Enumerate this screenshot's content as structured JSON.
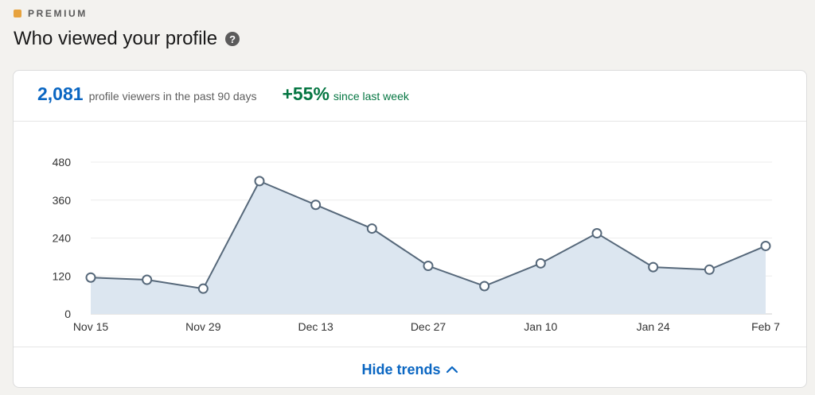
{
  "header": {
    "premium_label": "PREMIUM",
    "title": "Who viewed your profile",
    "help_icon": "question-circle-icon"
  },
  "stats": {
    "viewer_count": "2,081",
    "viewer_desc": "profile viewers in the past 90 days",
    "growth_value": "+55%",
    "growth_desc": "since last week"
  },
  "footer": {
    "toggle_label": "Hide trends",
    "toggle_icon": "chevron-up-icon"
  },
  "colors": {
    "accent": "#0a66c2",
    "positive": "#057642",
    "line": "#56687a",
    "area": "#dce6f0",
    "premium": "#e7a33e"
  },
  "chart_data": {
    "type": "area",
    "x": [
      "Nov 15",
      "Nov 22",
      "Nov 29",
      "Dec 6",
      "Dec 13",
      "Dec 20",
      "Dec 27",
      "Jan 3",
      "Jan 10",
      "Jan 17",
      "Jan 24",
      "Jan 31",
      "Feb 7"
    ],
    "values": [
      115,
      108,
      80,
      420,
      345,
      270,
      152,
      88,
      160,
      255,
      148,
      140,
      215
    ],
    "xticks": [
      "Nov 15",
      "Nov 29",
      "Dec 13",
      "Dec 27",
      "Jan 10",
      "Jan 24",
      "Feb 7"
    ],
    "yticks": [
      0,
      120,
      240,
      360,
      480
    ],
    "ylim": [
      0,
      480
    ],
    "grid": true,
    "title": "",
    "xlabel": "",
    "ylabel": ""
  }
}
